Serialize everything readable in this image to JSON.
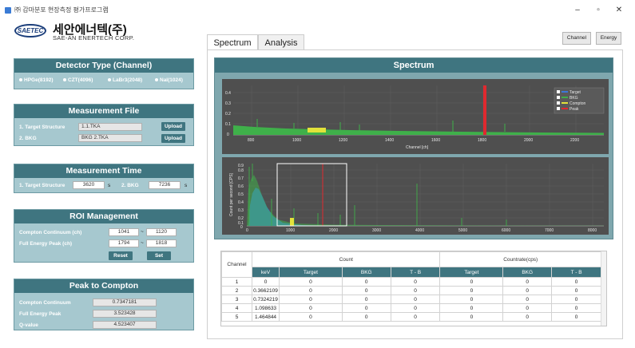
{
  "window": {
    "title": "㈜ 감마분포 현장측정 평가프로그램",
    "controls": [
      "–",
      "▫",
      "✕"
    ]
  },
  "logo": {
    "mark": "SAETEC",
    "name_ko": "세안에너텍(주)",
    "name_en": "SAE-AN ENERTECH CORP."
  },
  "tabs": [
    {
      "label": "Spectrum"
    },
    {
      "label": "Analysis"
    }
  ],
  "top_buttons": {
    "channel": "Channel",
    "energy": "Energy"
  },
  "detector": {
    "title": "Detector Type (Channel)",
    "options": [
      "HPGe(8192)",
      "CZT(4096)",
      "LaBr3(2048)",
      "NaI(1024)"
    ]
  },
  "measurement_file": {
    "title": "Measurement File",
    "target_label": "1. Target Structure",
    "target_value": "1.1.TKA",
    "bkg_label": "2. BKG",
    "bkg_value": "BKG 2.TKA",
    "upload_label": "Upload"
  },
  "measurement_time": {
    "title": "Measurement Time",
    "target_label": "1. Target Structure",
    "target_value": "3620",
    "bkg_label": "2. BKG",
    "bkg_value": "7236",
    "unit": "s"
  },
  "roi": {
    "title": "ROI Management",
    "compton_label": "Compton Continuum (ch)",
    "compton_from": "1041",
    "compton_to": "1120",
    "peak_label": "Full Energy Peak (ch)",
    "peak_from": "1794",
    "peak_to": "1818",
    "separator": "~",
    "reset_label": "Reset",
    "set_label": "Set"
  },
  "ptc": {
    "title": "Peak to Compton",
    "compton_label": "Compton Continuum",
    "compton_value": "0.7347181",
    "peak_label": "Full Energy Peak",
    "peak_value": "3.523428",
    "q_label": "Q-value",
    "q_value": "4.523407"
  },
  "spectrum": {
    "title": "Spectrum",
    "top_chart": {
      "xlabel": "Channel [ch]",
      "x_ticks": [
        "800",
        "1000",
        "1200",
        "1400",
        "1600",
        "1800",
        "2000",
        "2200"
      ],
      "y_ticks": [
        "0.4",
        "0.3",
        "0.2",
        "0.1",
        "0"
      ],
      "legend": [
        "Target",
        "BKG",
        "Compton",
        "Peak"
      ]
    },
    "bottom_chart": {
      "ylabel": "Count per second [CPS]",
      "x_ticks": [
        "0",
        "1000",
        "2000",
        "3000",
        "4000",
        "5000",
        "6000",
        "7000",
        "8000"
      ],
      "y_ticks": [
        "0.9",
        "0.8",
        "0.7",
        "0.6",
        "0.5",
        "0.4",
        "0.3",
        "0.2",
        "0.1",
        "0"
      ]
    }
  },
  "colors": {
    "target": "#3c78d8",
    "bkg": "#3fb04a",
    "compton": "#e2e23a",
    "peak": "#e0292f",
    "panel_head": "#3f7580"
  },
  "table": {
    "group_count": "Count",
    "group_countrate": "Countrate(cps)",
    "columns": [
      "Channel",
      "keV",
      "Target",
      "BKG",
      "T - B",
      "Target",
      "BKG",
      "T - B"
    ],
    "rows": [
      [
        "1",
        "0",
        "0",
        "0",
        "0",
        "0",
        "0",
        "0"
      ],
      [
        "2",
        "0.3662109",
        "0",
        "0",
        "0",
        "0",
        "0",
        "0"
      ],
      [
        "3",
        "0.7324219",
        "0",
        "0",
        "0",
        "0",
        "0",
        "0"
      ],
      [
        "4",
        "1.098633",
        "0",
        "0",
        "0",
        "0",
        "0",
        "0"
      ],
      [
        "5",
        "1.464844",
        "0",
        "0",
        "0",
        "0",
        "0",
        "0"
      ]
    ]
  }
}
